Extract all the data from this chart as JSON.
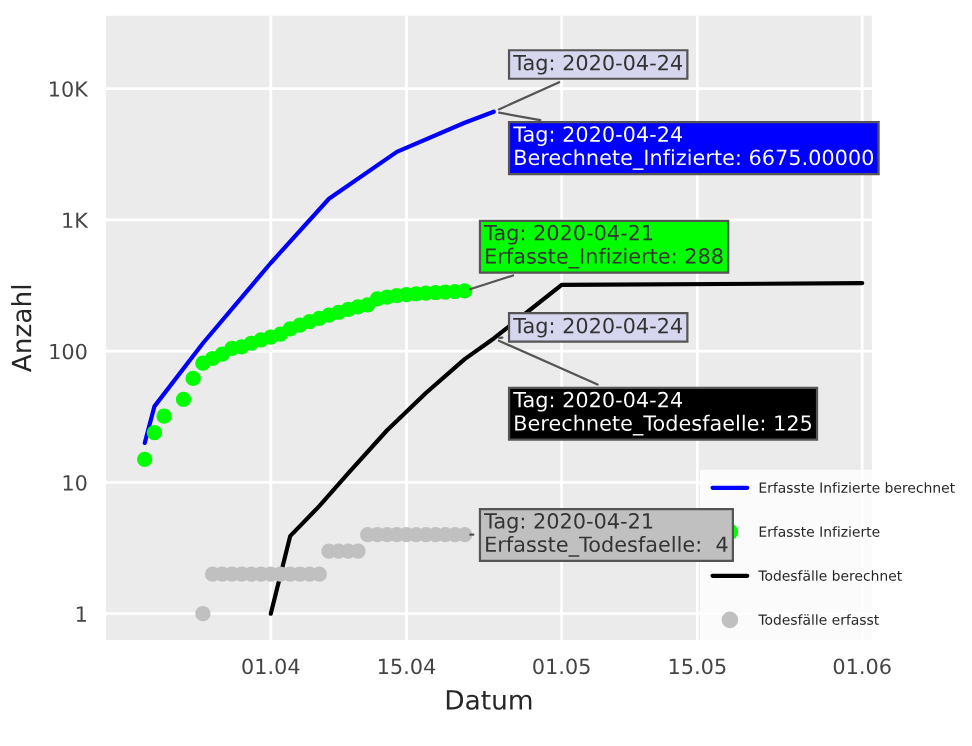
{
  "chart_data": {
    "type": "line",
    "xlabel": "Datum",
    "ylabel": "Anzahl",
    "log": "y",
    "grid": true,
    "legend": "bottom right",
    "xlim": [
      "2020-03-15",
      "2020-06-02"
    ],
    "xticks": [
      {
        "value": "2020-04-01",
        "label": "01.04"
      },
      {
        "value": "2020-04-15",
        "label": "15.04"
      },
      {
        "value": "2020-05-01",
        "label": "01.05"
      },
      {
        "value": "2020-05-15",
        "label": "15.05"
      },
      {
        "value": "2020-06-01",
        "label": "01.06"
      }
    ],
    "ylim": [
      0.63,
      36000
    ],
    "yticks": [
      1,
      10,
      100,
      {
        "value": 1000,
        "label": "1K"
      },
      {
        "value": 10000,
        "label": "10K"
      }
    ],
    "series": [
      {
        "name": "Erfasste Infizierte berechnet",
        "type": "line",
        "color": "#0000ff",
        "x": [
          "2020-03-19",
          "2020-03-20",
          "2020-03-25",
          "2020-04-01",
          "2020-04-07",
          "2020-04-14",
          "2020-04-21",
          "2020-04-24"
        ],
        "values": [
          20,
          38,
          115,
          470,
          1450,
          3300,
          5500,
          6675
        ]
      },
      {
        "name": "Erfasste Infizierte",
        "type": "scatter",
        "color": "#00ff00",
        "x": [
          "2020-03-19",
          "2020-03-20",
          "2020-03-21",
          "2020-03-23",
          "2020-03-24",
          "2020-03-25",
          "2020-03-26",
          "2020-03-27",
          "2020-03-28",
          "2020-03-29",
          "2020-03-30",
          "2020-03-31",
          "2020-04-01",
          "2020-04-02",
          "2020-04-03",
          "2020-04-04",
          "2020-04-05",
          "2020-04-06",
          "2020-04-07",
          "2020-04-08",
          "2020-04-09",
          "2020-04-10",
          "2020-04-11",
          "2020-04-12",
          "2020-04-13",
          "2020-04-14",
          "2020-04-15",
          "2020-04-16",
          "2020-04-17",
          "2020-04-18",
          "2020-04-19",
          "2020-04-20",
          "2020-04-21"
        ],
        "values": [
          15,
          24,
          32,
          43,
          62,
          81,
          88,
          95,
          105,
          108,
          115,
          122,
          128,
          135,
          148,
          158,
          168,
          178,
          188,
          198,
          208,
          218,
          225,
          250,
          258,
          265,
          270,
          274,
          277,
          280,
          282,
          285,
          288
        ]
      },
      {
        "name": "Todesfälle berechnet",
        "type": "line",
        "color": "#000000",
        "x": [
          "2020-04-01",
          "2020-04-03",
          "2020-04-06",
          "2020-04-09",
          "2020-04-13",
          "2020-04-17",
          "2020-04-21",
          "2020-04-24",
          "2020-05-01",
          "2020-06-01"
        ],
        "values": [
          1,
          3.9,
          6.6,
          11.8,
          25,
          48,
          87,
          125,
          320,
          330
        ]
      },
      {
        "name": "Todesfälle erfasst",
        "type": "scatter",
        "color": "#c0c0c0",
        "x": [
          "2020-03-25",
          "2020-03-26",
          "2020-03-27",
          "2020-03-28",
          "2020-03-29",
          "2020-03-30",
          "2020-03-31",
          "2020-04-01",
          "2020-04-02",
          "2020-04-03",
          "2020-04-04",
          "2020-04-05",
          "2020-04-06",
          "2020-04-07",
          "2020-04-08",
          "2020-04-09",
          "2020-04-10",
          "2020-04-11",
          "2020-04-12",
          "2020-04-13",
          "2020-04-14",
          "2020-04-15",
          "2020-04-16",
          "2020-04-17",
          "2020-04-18",
          "2020-04-19",
          "2020-04-20",
          "2020-04-21"
        ],
        "values": [
          1,
          2,
          2,
          2,
          2,
          2,
          2,
          2,
          2,
          2,
          2,
          2,
          2,
          3,
          3,
          3,
          3,
          4,
          4,
          4,
          4,
          4,
          4,
          4,
          4,
          4,
          4,
          4
        ]
      }
    ],
    "annotations": [
      {
        "text": "Tag: 2020-04-24\nBerechnete_Infizierte: 6675.00000",
        "x": "2020-04-24",
        "y": 6675
      },
      {
        "text": "Tag: 2020-04-24",
        "x": "2020-04-24",
        "y": 6675
      },
      {
        "text": "Tag: 2020-04-21\nErfasste_Infizierte: 288",
        "x": "2020-04-21",
        "y": 288
      },
      {
        "text": "Tag: 2020-04-24\nBerechnete_Todesfaelle: 125",
        "x": "2020-04-24",
        "y": 125
      },
      {
        "text": "Tag: 2020-04-24",
        "x": "2020-04-24",
        "y": 125
      },
      {
        "text": "Tag: 2020-04-21\nErfasste_Todesfaelle:  4",
        "x": "2020-04-21",
        "y": 4
      }
    ]
  }
}
